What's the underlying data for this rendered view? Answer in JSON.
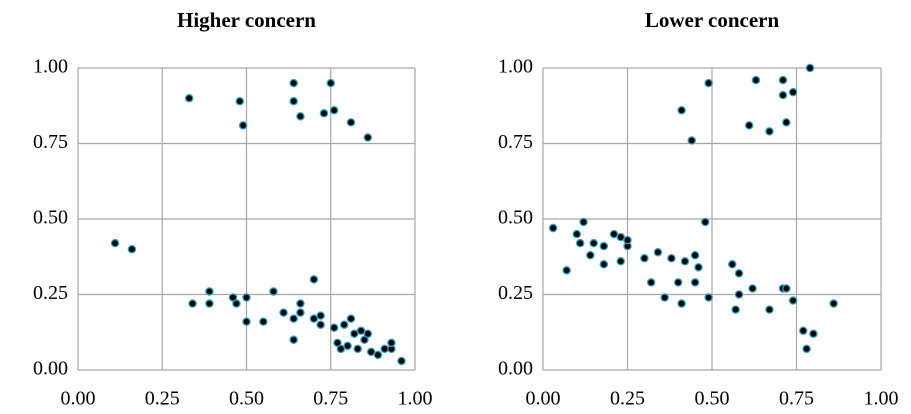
{
  "chart_data": [
    {
      "type": "scatter",
      "title": "Higher concern",
      "color": "#000000",
      "edge_color": "#2ea3c8",
      "grid": true,
      "xlim": [
        0,
        1
      ],
      "ylim": [
        0,
        1
      ],
      "xticks": [
        {
          "value": 0,
          "label": "0.00"
        },
        {
          "value": 0.25,
          "label": "0.25"
        },
        {
          "value": 0.5,
          "label": "0.50"
        },
        {
          "value": 0.75,
          "label": "0.75"
        },
        {
          "value": 1,
          "label": "1.00"
        }
      ],
      "yticks": [
        {
          "value": 0,
          "label": "0.00"
        },
        {
          "value": 0.25,
          "label": "0.25"
        },
        {
          "value": 0.5,
          "label": "0.50"
        },
        {
          "value": 0.75,
          "label": "0.75"
        },
        {
          "value": 1,
          "label": "1.00"
        }
      ],
      "x": [
        0.33,
        0.48,
        0.49,
        0.64,
        0.64,
        0.66,
        0.75,
        0.73,
        0.76,
        0.81,
        0.86,
        0.11,
        0.16,
        0.34,
        0.39,
        0.39,
        0.46,
        0.47,
        0.5,
        0.5,
        0.55,
        0.58,
        0.61,
        0.64,
        0.64,
        0.66,
        0.66,
        0.7,
        0.7,
        0.72,
        0.72,
        0.76,
        0.77,
        0.78,
        0.79,
        0.8,
        0.81,
        0.82,
        0.83,
        0.84,
        0.85,
        0.86,
        0.87,
        0.89,
        0.91,
        0.93,
        0.93,
        0.96
      ],
      "values": [
        0.9,
        0.89,
        0.81,
        0.95,
        0.89,
        0.84,
        0.95,
        0.85,
        0.86,
        0.82,
        0.77,
        0.42,
        0.4,
        0.22,
        0.26,
        0.22,
        0.24,
        0.22,
        0.24,
        0.16,
        0.16,
        0.26,
        0.19,
        0.17,
        0.1,
        0.19,
        0.22,
        0.3,
        0.17,
        0.15,
        0.18,
        0.14,
        0.09,
        0.07,
        0.15,
        0.08,
        0.17,
        0.12,
        0.07,
        0.13,
        0.1,
        0.12,
        0.06,
        0.05,
        0.07,
        0.07,
        0.09,
        0.03
      ]
    },
    {
      "type": "scatter",
      "title": "Lower concern",
      "color": "#000000",
      "edge_color": "#2ea3c8",
      "grid": true,
      "xlim": [
        0,
        1
      ],
      "ylim": [
        0,
        1
      ],
      "xticks": [
        {
          "value": 0,
          "label": "0.00"
        },
        {
          "value": 0.25,
          "label": "0.25"
        },
        {
          "value": 0.5,
          "label": "0.50"
        },
        {
          "value": 0.75,
          "label": "0.75"
        },
        {
          "value": 1,
          "label": "1.00"
        }
      ],
      "yticks": [
        {
          "value": 0,
          "label": "0.00"
        },
        {
          "value": 0.25,
          "label": "0.25"
        },
        {
          "value": 0.5,
          "label": "0.50"
        },
        {
          "value": 0.75,
          "label": "0.75"
        },
        {
          "value": 1,
          "label": "1.00"
        }
      ],
      "x": [
        0.79,
        0.49,
        0.63,
        0.71,
        0.74,
        0.71,
        0.41,
        0.61,
        0.67,
        0.72,
        0.44,
        0.03,
        0.07,
        0.1,
        0.12,
        0.11,
        0.14,
        0.15,
        0.18,
        0.18,
        0.21,
        0.23,
        0.23,
        0.25,
        0.25,
        0.3,
        0.32,
        0.34,
        0.36,
        0.38,
        0.4,
        0.41,
        0.42,
        0.45,
        0.46,
        0.45,
        0.48,
        0.49,
        0.56,
        0.57,
        0.58,
        0.58,
        0.62,
        0.67,
        0.71,
        0.72,
        0.74,
        0.77,
        0.78,
        0.8,
        0.86
      ],
      "values": [
        1.0,
        0.95,
        0.96,
        0.96,
        0.92,
        0.91,
        0.86,
        0.81,
        0.79,
        0.82,
        0.76,
        0.47,
        0.33,
        0.45,
        0.49,
        0.42,
        0.38,
        0.42,
        0.35,
        0.41,
        0.45,
        0.36,
        0.44,
        0.41,
        0.43,
        0.37,
        0.29,
        0.39,
        0.24,
        0.37,
        0.29,
        0.22,
        0.36,
        0.38,
        0.34,
        0.29,
        0.49,
        0.24,
        0.35,
        0.2,
        0.32,
        0.25,
        0.27,
        0.2,
        0.27,
        0.27,
        0.23,
        0.13,
        0.07,
        0.12,
        0.22
      ]
    }
  ]
}
